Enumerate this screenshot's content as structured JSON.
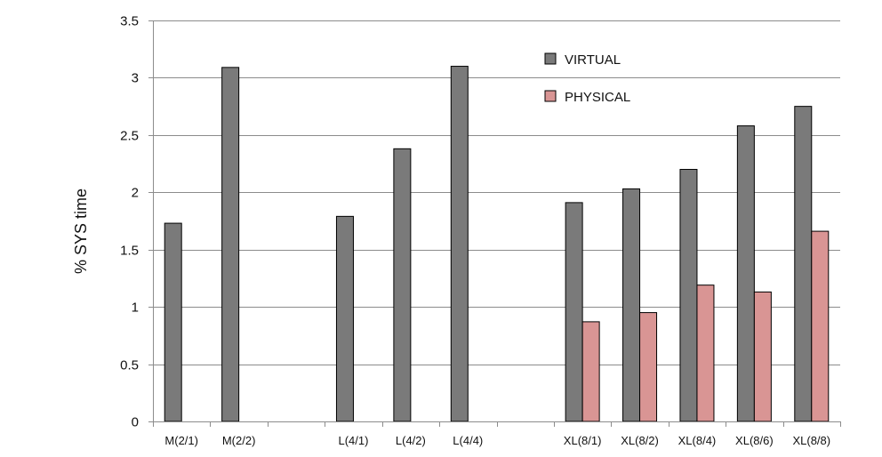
{
  "chart_data": {
    "type": "bar",
    "ylabel": "% SYS time",
    "xlabel": "",
    "title": "",
    "ylim": [
      0,
      3.5
    ],
    "yticks": [
      "0",
      "0.5",
      "1",
      "1.5",
      "2",
      "2.5",
      "3",
      "3.5"
    ],
    "grid": true,
    "legend_position": "top-right",
    "categories": [
      "M(2/1)",
      "M(2/2)",
      "",
      "L(4/1)",
      "L(4/2)",
      "L(4/4)",
      "",
      "XL(8/1)",
      "XL(8/2)",
      "XL(8/4)",
      "XL(8/6)",
      "XL(8/8)"
    ],
    "series": [
      {
        "name": "VIRTUAL",
        "color": "#7a7a7a",
        "values": [
          1.73,
          3.09,
          null,
          1.79,
          2.38,
          3.1,
          null,
          1.91,
          2.03,
          2.2,
          2.58,
          2.75
        ]
      },
      {
        "name": "PHYSICAL",
        "color": "#d99594",
        "values": [
          null,
          null,
          null,
          null,
          null,
          null,
          null,
          0.87,
          0.95,
          1.19,
          1.13,
          1.66
        ]
      }
    ]
  }
}
